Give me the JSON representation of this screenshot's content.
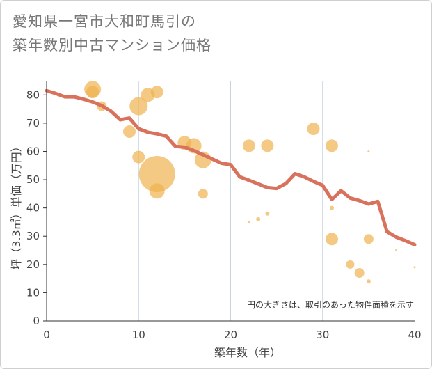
{
  "title": {
    "line1": "愛知県一宮市大和町馬引の",
    "line2": "築年数別中古マンション価格"
  },
  "chart_data": {
    "type": "scatter",
    "xlabel": "築年数（年）",
    "ylabel": "坪（3.3㎡）単価（万円）",
    "xlim": [
      0,
      40
    ],
    "ylim": [
      0,
      85
    ],
    "xticks": [
      0,
      10,
      20,
      30,
      40
    ],
    "yticks": [
      0,
      10,
      20,
      30,
      40,
      50,
      60,
      70,
      80
    ],
    "grid": true,
    "note": "円の大きさは、取引のあった物件面積を示す",
    "colors": {
      "bubble": "#f0b24f",
      "line": "#d9725c"
    },
    "bubbles": [
      {
        "x": 5,
        "y": 82,
        "r": 12
      },
      {
        "x": 5,
        "y": 81,
        "r": 9
      },
      {
        "x": 6,
        "y": 76,
        "r": 7
      },
      {
        "x": 9,
        "y": 67,
        "r": 9
      },
      {
        "x": 10,
        "y": 76,
        "r": 13
      },
      {
        "x": 10,
        "y": 58,
        "r": 9
      },
      {
        "x": 11,
        "y": 80,
        "r": 10
      },
      {
        "x": 12,
        "y": 81,
        "r": 9
      },
      {
        "x": 12,
        "y": 52,
        "r": 26
      },
      {
        "x": 12,
        "y": 46,
        "r": 11
      },
      {
        "x": 15,
        "y": 63,
        "r": 10
      },
      {
        "x": 16,
        "y": 62,
        "r": 11
      },
      {
        "x": 17,
        "y": 57,
        "r": 12
      },
      {
        "x": 17,
        "y": 45,
        "r": 7
      },
      {
        "x": 22,
        "y": 62,
        "r": 9
      },
      {
        "x": 22,
        "y": 35,
        "r": 1.5
      },
      {
        "x": 23,
        "y": 36,
        "r": 3
      },
      {
        "x": 24,
        "y": 62,
        "r": 9
      },
      {
        "x": 24,
        "y": 38,
        "r": 3
      },
      {
        "x": 29,
        "y": 68,
        "r": 9
      },
      {
        "x": 31,
        "y": 62,
        "r": 9
      },
      {
        "x": 31,
        "y": 40,
        "r": 3
      },
      {
        "x": 31,
        "y": 29,
        "r": 9
      },
      {
        "x": 33,
        "y": 20,
        "r": 6
      },
      {
        "x": 34,
        "y": 17,
        "r": 7
      },
      {
        "x": 35,
        "y": 60,
        "r": 1.5
      },
      {
        "x": 35,
        "y": 29,
        "r": 7
      },
      {
        "x": 35,
        "y": 14,
        "r": 3
      },
      {
        "x": 38,
        "y": 25,
        "r": 1.5
      },
      {
        "x": 40,
        "y": 19,
        "r": 1.5
      }
    ],
    "line": {
      "x": [
        0,
        1,
        2,
        3,
        4,
        5,
        6,
        7,
        8,
        9,
        10,
        11,
        12,
        13,
        14,
        15,
        16,
        17,
        18,
        19,
        20,
        21,
        22,
        23,
        24,
        25,
        26,
        27,
        28,
        29,
        30,
        31,
        32,
        33,
        34,
        35,
        36,
        37,
        38,
        39,
        40
      ],
      "y": [
        81.5,
        80.5,
        79.3,
        79.3,
        78.5,
        77.5,
        76.2,
        74.2,
        71.2,
        71.8,
        68,
        66.8,
        66.2,
        65.4,
        61.8,
        61.5,
        60.3,
        58.8,
        57.3,
        55.8,
        55.3,
        51,
        49.8,
        48.5,
        47.2,
        46.9,
        48.6,
        52.1,
        51,
        49.4,
        48,
        43,
        46.1,
        43.5,
        42.6,
        41.4,
        42.3,
        31.6,
        29.7,
        28.4,
        27
      ]
    }
  }
}
